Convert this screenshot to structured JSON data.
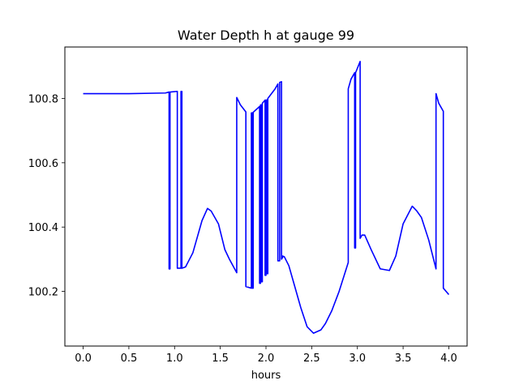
{
  "chart_data": {
    "type": "line",
    "title": "Water Depth h at gauge 99",
    "xlabel": "hours",
    "ylabel": "",
    "xlim": [
      -0.2,
      4.2
    ],
    "ylim": [
      100.03,
      100.96
    ],
    "xticks": [
      0.0,
      0.5,
      1.0,
      1.5,
      2.0,
      2.5,
      3.0,
      3.5,
      4.0
    ],
    "xtick_labels": [
      "0.0",
      "0.5",
      "1.0",
      "1.5",
      "2.0",
      "2.5",
      "3.0",
      "3.5",
      "4.0"
    ],
    "yticks": [
      100.2,
      100.4,
      100.6,
      100.8
    ],
    "ytick_labels": [
      "100.2",
      "100.4",
      "100.6",
      "100.8"
    ],
    "grid": false,
    "line_color": "#0000ff",
    "series": [
      {
        "x": [
          0.0,
          0.5,
          0.9,
          0.94,
          0.94,
          0.95,
          0.95,
          1.03,
          1.03,
          1.07,
          1.07,
          1.08,
          1.08,
          1.12,
          1.2,
          1.3,
          1.36,
          1.4,
          1.48,
          1.55,
          1.6,
          1.68,
          1.68,
          1.72,
          1.78,
          1.78,
          1.84,
          1.84,
          1.85,
          1.85,
          1.86,
          1.86,
          1.93,
          1.93,
          1.94,
          1.94,
          1.95,
          1.95,
          1.96,
          1.96,
          1.99,
          1.99,
          2.0,
          2.0,
          2.01,
          2.01,
          2.02,
          2.02,
          2.1,
          2.13,
          2.13,
          2.15,
          2.15,
          2.17,
          2.17,
          2.18,
          2.18,
          2.2,
          2.25,
          2.3,
          2.38,
          2.45,
          2.52,
          2.6,
          2.65,
          2.72,
          2.8,
          2.9,
          2.9,
          2.93,
          2.97,
          2.97,
          2.98,
          2.98,
          3.03,
          3.03,
          3.05,
          3.08,
          3.15,
          3.25,
          3.35,
          3.42,
          3.5,
          3.6,
          3.65,
          3.7,
          3.78,
          3.86,
          3.86,
          3.89,
          3.94,
          3.94,
          4.0
        ],
        "y": [
          100.815,
          100.815,
          100.817,
          100.82,
          100.27,
          100.27,
          100.82,
          100.822,
          100.272,
          100.272,
          100.822,
          100.822,
          100.272,
          100.276,
          100.32,
          100.42,
          100.458,
          100.45,
          100.41,
          100.33,
          100.3,
          100.258,
          100.803,
          100.78,
          100.758,
          100.215,
          100.21,
          100.755,
          100.755,
          100.21,
          100.21,
          100.757,
          100.775,
          100.225,
          100.225,
          100.78,
          100.78,
          100.23,
          100.23,
          100.785,
          100.795,
          100.25,
          100.25,
          100.795,
          100.795,
          100.255,
          100.255,
          100.8,
          100.83,
          100.845,
          100.295,
          100.295,
          100.85,
          100.852,
          100.3,
          100.305,
          100.31,
          100.308,
          100.28,
          100.23,
          100.15,
          100.09,
          100.07,
          100.08,
          100.1,
          100.14,
          100.2,
          100.29,
          100.83,
          100.86,
          100.88,
          100.335,
          100.335,
          100.88,
          100.915,
          100.365,
          100.375,
          100.375,
          100.33,
          100.27,
          100.265,
          100.31,
          100.41,
          100.465,
          100.45,
          100.43,
          100.36,
          100.27,
          100.815,
          100.785,
          100.76,
          100.21,
          100.19
        ]
      }
    ]
  }
}
